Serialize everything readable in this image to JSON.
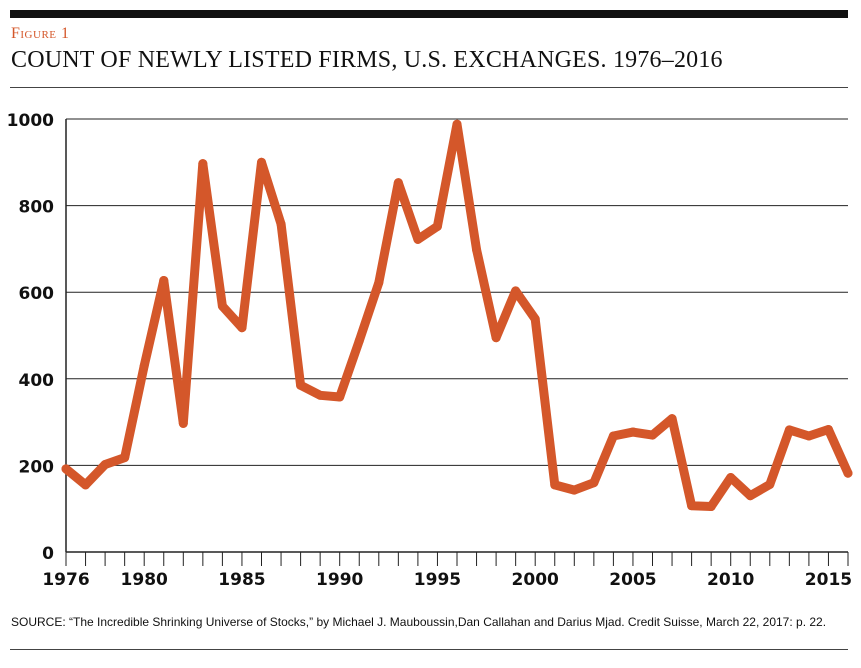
{
  "figure": {
    "label": "Figure 1",
    "title": "COUNT OF NEWLY LISTED FIRMS, U.S. EXCHANGES. 1976–2016"
  },
  "source_note": "SOURCE: “The Incredible Shrinking Universe of Stocks,” by Michael J. Mauboussin,Dan Callahan and Darius Mjad. Credit Suisse, March 22, 2017: p. 22.",
  "colors": {
    "line": "#d4572a",
    "grid": "#222222",
    "text": "#111111"
  },
  "chart_data": {
    "type": "line",
    "title": "COUNT OF NEWLY LISTED FIRMS, U.S. EXCHANGES. 1976–2016",
    "xlabel": "",
    "ylabel": "",
    "xlim": [
      1976,
      2016
    ],
    "ylim": [
      0,
      1000
    ],
    "grid": true,
    "legend": "none",
    "x_ticks": [
      "1976",
      "1980",
      "1985",
      "1990",
      "1995",
      "2000",
      "2005",
      "2010",
      "2015"
    ],
    "y_ticks": [
      "0",
      "200",
      "400",
      "600",
      "800",
      "1000"
    ],
    "x": [
      1976,
      1977,
      1978,
      1979,
      1980,
      1981,
      1982,
      1983,
      1984,
      1985,
      1986,
      1987,
      1988,
      1989,
      1990,
      1991,
      1992,
      1993,
      1994,
      1995,
      1996,
      1997,
      1998,
      1999,
      2000,
      2001,
      2002,
      2003,
      2004,
      2005,
      2006,
      2007,
      2008,
      2009,
      2010,
      2011,
      2012,
      2013,
      2014,
      2015,
      2016
    ],
    "series": [
      {
        "values": [
          192,
          155,
          202,
          218,
          430,
          627,
          297,
          897,
          568,
          518,
          900,
          757,
          385,
          362,
          358,
          488,
          622,
          853,
          722,
          752,
          988,
          698,
          495,
          603,
          538,
          155,
          143,
          160,
          268,
          277,
          270,
          308,
          107,
          105,
          172,
          130,
          156,
          282,
          268,
          283,
          182
        ]
      }
    ]
  }
}
